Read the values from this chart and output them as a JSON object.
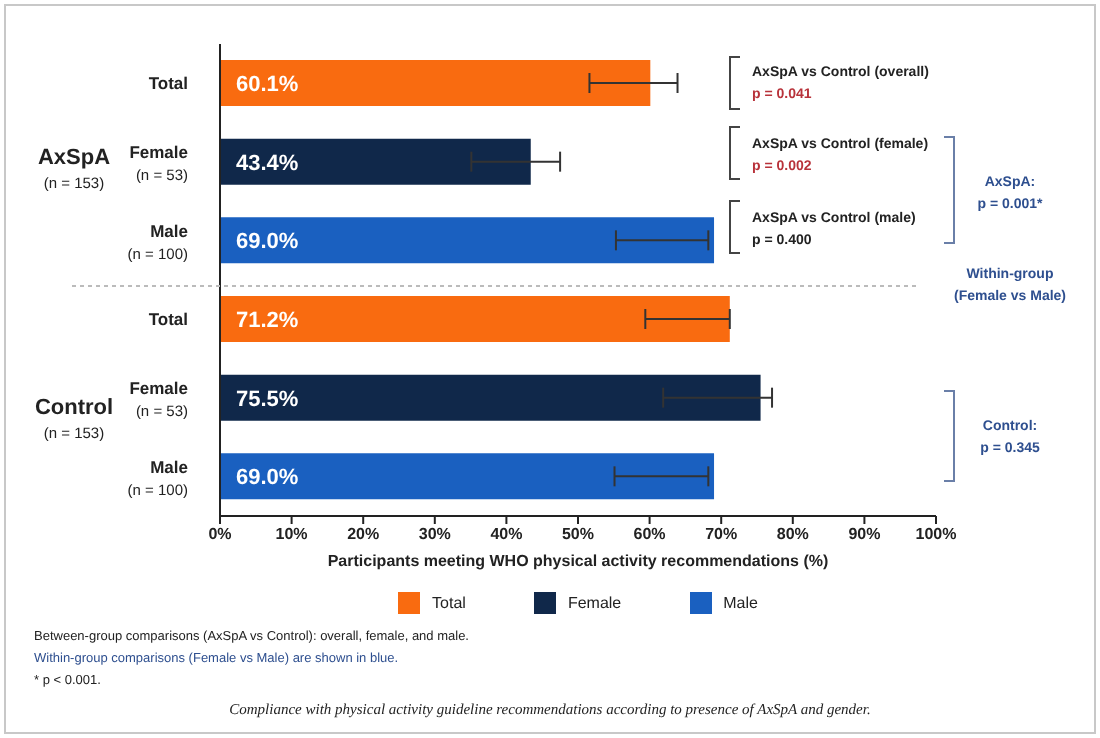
{
  "chart_data": {
    "type": "bar",
    "orientation": "horizontal",
    "stacked": true,
    "xlabel": "Participants meeting WHO physical activity recommendations (%)",
    "categories": [
      "Total",
      "Female\n(n = 53)",
      "Male\n(n = 100)",
      "Total",
      "Female\n(n = 53)",
      "Male\n(n = 100)"
    ],
    "series": [
      {
        "name": "Total",
        "color": "#f96b10",
        "values": [
          60.1,
          null,
          null,
          71.2,
          null,
          null
        ],
        "errors": [
          [
            51.6,
            63.9
          ],
          null,
          null,
          [
            59.4,
            71.2
          ],
          null,
          null
        ],
        "value_labels": [
          "60.1%",
          null,
          null,
          "71.2%",
          null,
          null
        ]
      },
      {
        "name": "Female",
        "color": "#10284a",
        "values": [
          null,
          43.4,
          null,
          null,
          75.5,
          null
        ],
        "errors": [
          null,
          [
            35.1,
            47.5
          ],
          null,
          null,
          [
            61.9,
            77.1
          ],
          null
        ],
        "value_labels": [
          null,
          "43.4%",
          null,
          null,
          "75.5%",
          null
        ]
      },
      {
        "name": "Male",
        "color": "#1a60c0",
        "values": [
          null,
          null,
          69.0,
          null,
          null,
          69.0
        ],
        "errors": [
          null,
          null,
          [
            55.3,
            68.2
          ],
          null,
          null,
          [
            55.1,
            68.2
          ]
        ],
        "value_labels": [
          null,
          null,
          "69.0%",
          null,
          null,
          "69.0%"
        ]
      }
    ],
    "xlim": [
      0,
      100
    ],
    "xticks": [
      {
        "value": 0,
        "label": "0%"
      },
      {
        "value": 10,
        "label": "10%"
      },
      {
        "value": 20,
        "label": "20%"
      },
      {
        "value": 30,
        "label": "30%"
      },
      {
        "value": 40,
        "label": "40%"
      },
      {
        "value": 50,
        "label": "50%"
      },
      {
        "value": 60,
        "label": "60%"
      },
      {
        "value": 70,
        "label": "70%"
      },
      {
        "value": 80,
        "label": "80%"
      },
      {
        "value": 90,
        "label": "90%"
      },
      {
        "value": 100,
        "label": "100%"
      }
    ],
    "grid": false,
    "legend": "bottom",
    "annotations": [
      "AxSpA",
      "(n = 153)",
      "Control",
      "(n = 153)",
      "AxSpA vs Control (overall)",
      "p = 0.041",
      "AxSpA vs Control (female)",
      "p = 0.002",
      "AxSpA vs Control (male)",
      "p = 0.400",
      "AxSpA:",
      "p = 0.001*",
      "Within-group",
      "(Female vs Male)",
      "Control:",
      "p = 0.345",
      "Between-group comparisons (AxSpA vs Control): overall, female, and male.",
      "Within-group comparisons (Female vs Male) are shown in blue.",
      "* p < 0.001.",
      "Compliance with physical activity guideline recommendations according to presence of AxSpA and gender."
    ]
  }
}
